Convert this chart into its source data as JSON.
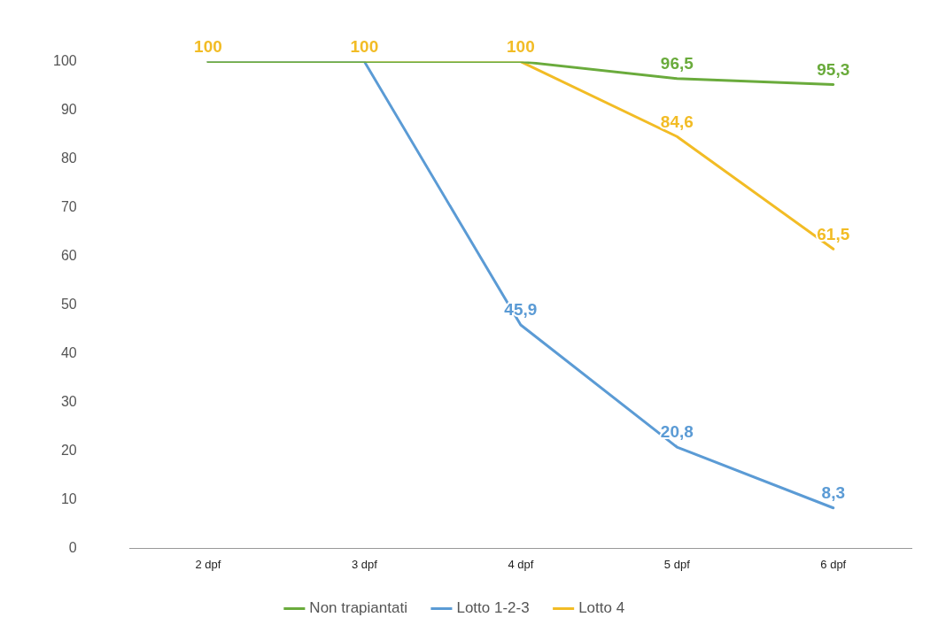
{
  "chart_data": {
    "type": "line",
    "categories": [
      "2 dpf",
      "3 dpf",
      "4 dpf",
      "5 dpf",
      "6 dpf"
    ],
    "ylim": [
      0,
      100
    ],
    "yticks": [
      0,
      10,
      20,
      30,
      40,
      50,
      60,
      70,
      80,
      90,
      100
    ],
    "grid": false,
    "legend": "bottom",
    "marker": "none",
    "line_style": "solid",
    "series": [
      {
        "name": "Non trapiantati",
        "color": "#6aab3c",
        "values": [
          100,
          100,
          100,
          96.5,
          95.3
        ],
        "value_labels": [
          null,
          null,
          null,
          "96,5",
          "95,3"
        ]
      },
      {
        "name": "Lotto 1-2-3",
        "color": "#5b9bd5",
        "values": [
          100,
          100,
          45.9,
          20.8,
          8.3
        ],
        "value_labels": [
          null,
          null,
          "45,9",
          "20,8",
          "8,3"
        ]
      },
      {
        "name": "Lotto 4",
        "color": "#f2bc25",
        "values": [
          100,
          100,
          100,
          84.6,
          61.5
        ],
        "value_labels": [
          "100",
          "100",
          "100",
          "84,6",
          "61,5"
        ]
      }
    ]
  }
}
